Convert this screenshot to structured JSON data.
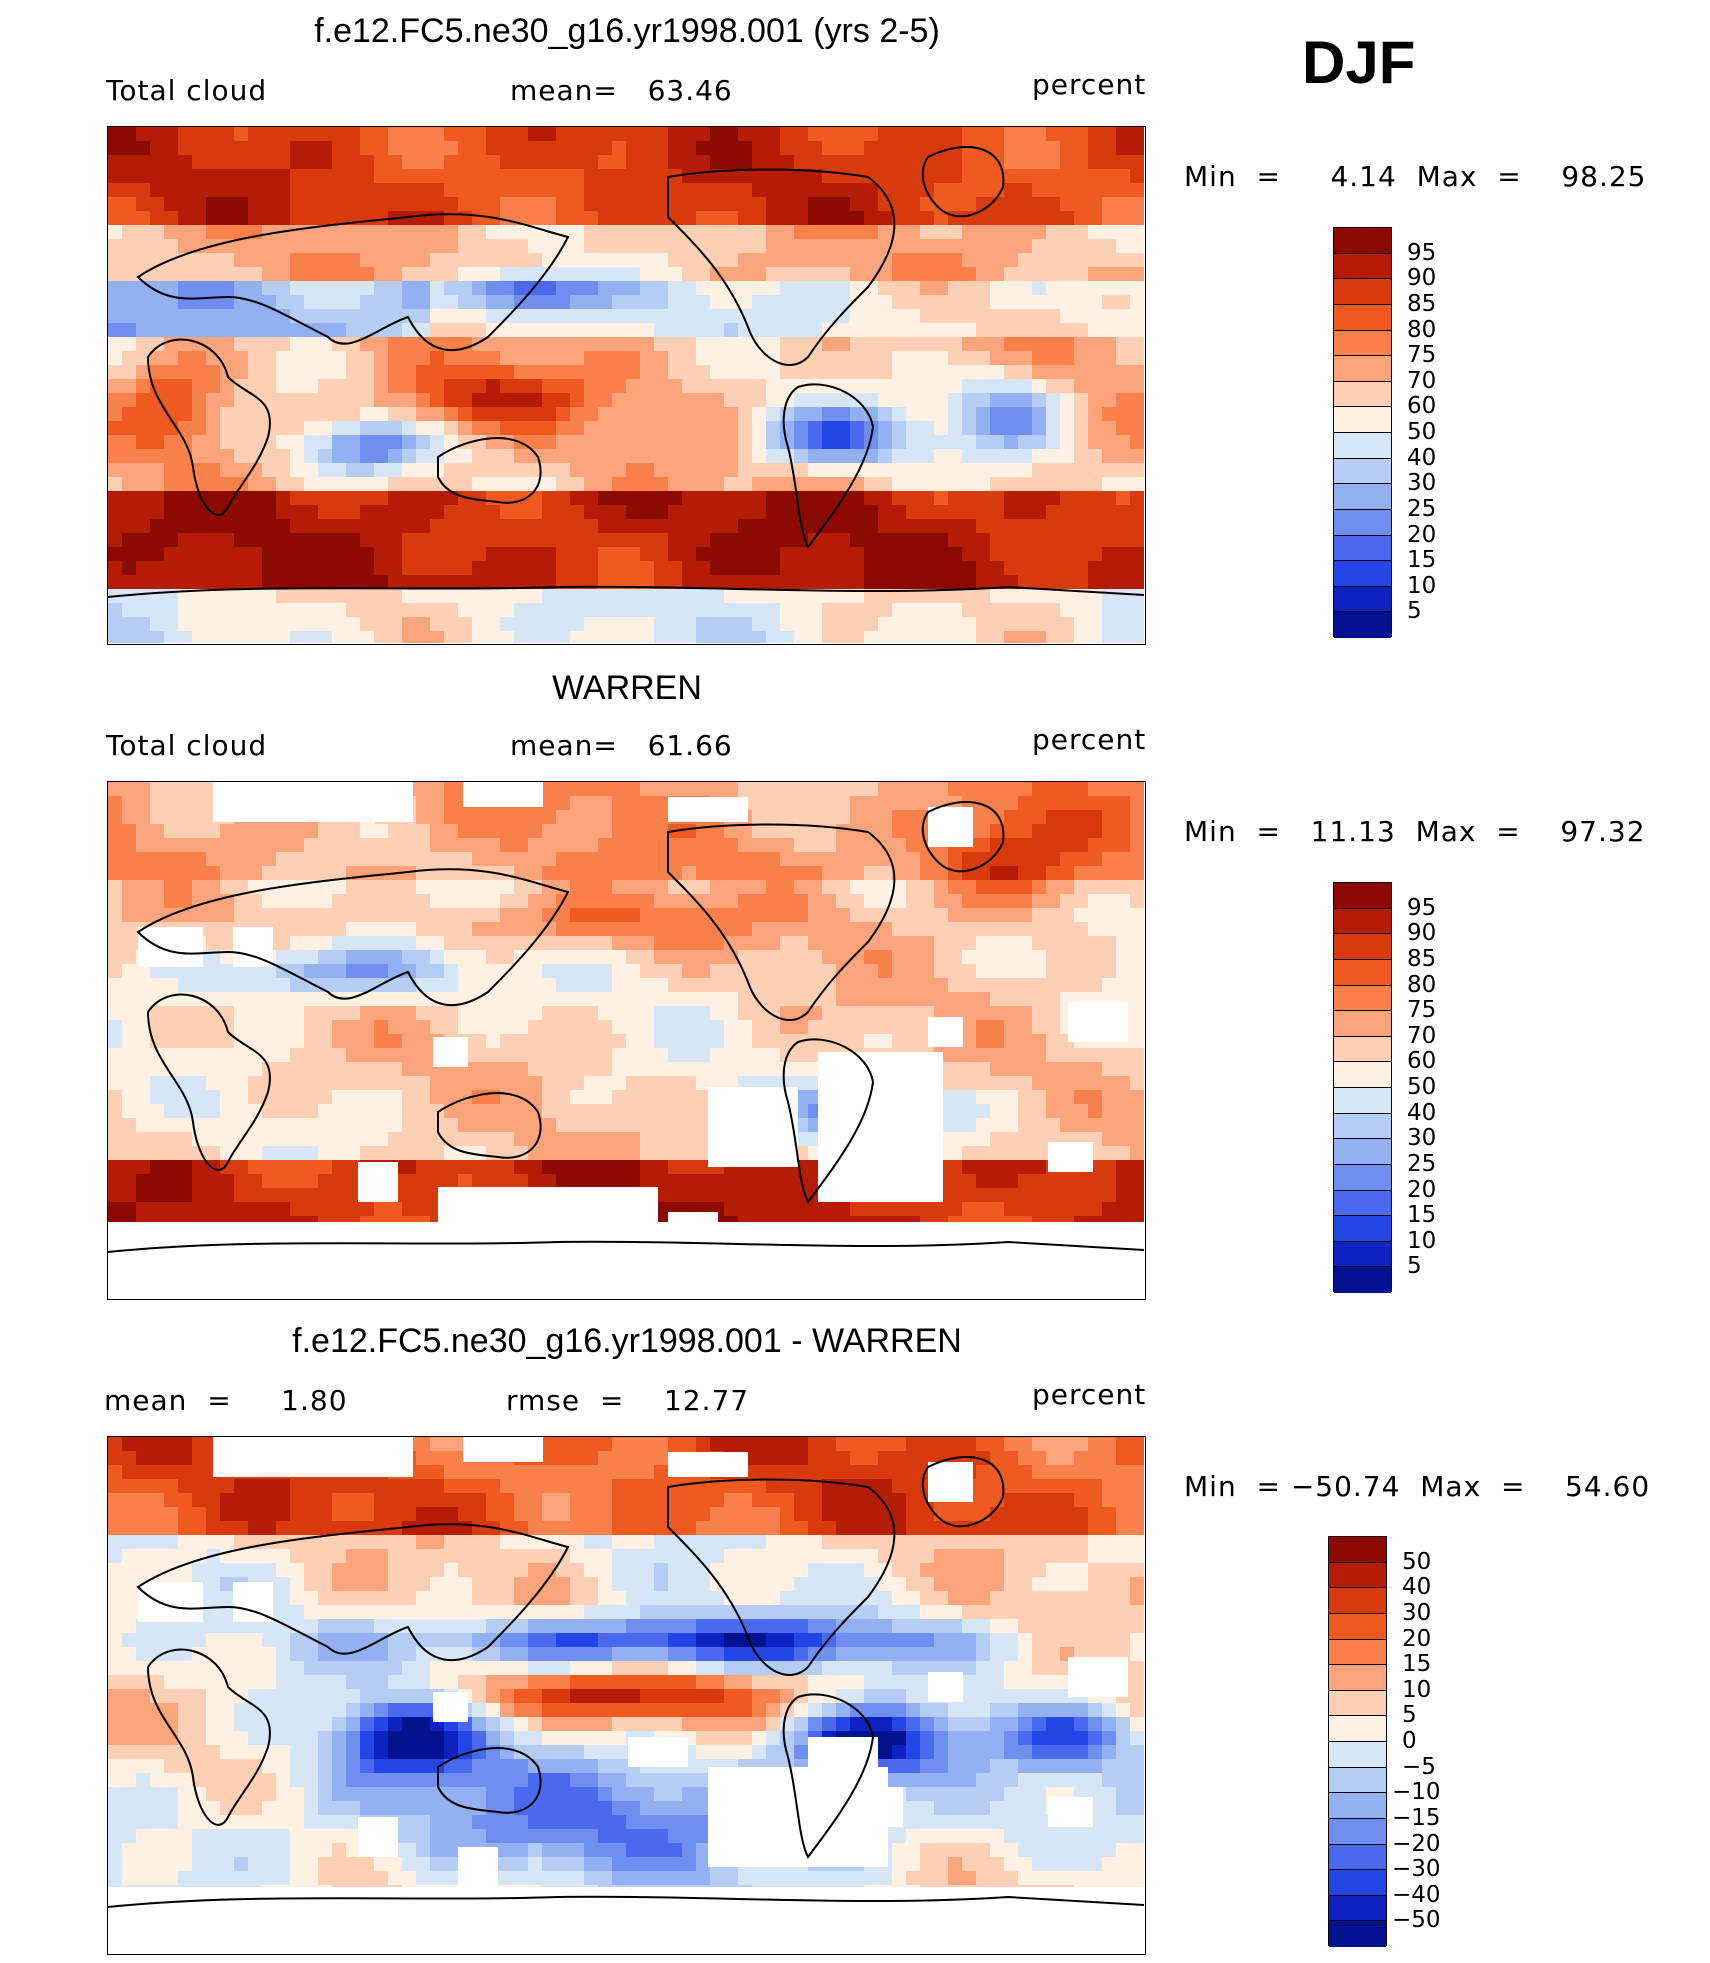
{
  "season": "DJF",
  "units": "percent",
  "panels": [
    {
      "id": "model",
      "title": "f.e12.FC5.ne30_g16.yr1998.001 (yrs 2-5)",
      "left_label": "Total cloud",
      "center_label": "mean=   63.46",
      "right_label": "percent",
      "minmax": "Min  =     4.14  Max  =    98.25",
      "colorbar_labels": [
        "95",
        "90",
        "85",
        "80",
        "75",
        "70",
        "60",
        "50",
        "40",
        "30",
        "25",
        "20",
        "15",
        "10",
        "5"
      ],
      "colorbar_colors": [
        "#8b0a02",
        "#b51c06",
        "#d93a0d",
        "#ef5a21",
        "#f8804a",
        "#fba47c",
        "#fdcfb4",
        "#fef0e3",
        "#d6e6f7",
        "#b5cdf5",
        "#92b0f2",
        "#6e8ff0",
        "#4a69ee",
        "#2446e6",
        "#0d22c0",
        "#03138f"
      ],
      "map_style": "model"
    },
    {
      "id": "obs",
      "title": "WARREN",
      "left_label": "Total cloud",
      "center_label": "mean=   61.66",
      "right_label": "percent",
      "minmax": "Min  =   11.13  Max  =    97.32",
      "colorbar_labels": [
        "95",
        "90",
        "85",
        "80",
        "75",
        "70",
        "60",
        "50",
        "40",
        "30",
        "25",
        "20",
        "15",
        "10",
        "5"
      ],
      "colorbar_colors": [
        "#8b0a02",
        "#b51c06",
        "#d93a0d",
        "#ef5a21",
        "#f8804a",
        "#fba47c",
        "#fdcfb4",
        "#fef0e3",
        "#d6e6f7",
        "#b5cdf5",
        "#92b0f2",
        "#6e8ff0",
        "#4a69ee",
        "#2446e6",
        "#0d22c0",
        "#03138f"
      ],
      "map_style": "obs"
    },
    {
      "id": "diff",
      "title": "f.e12.FC5.ne30_g16.yr1998.001 - WARREN",
      "left_label": "mean  =     1.80",
      "center_label": "rmse  =    12.77",
      "right_label": "percent",
      "minmax": "Min  = −50.74  Max  =    54.60",
      "colorbar_labels": [
        "50",
        "40",
        "30",
        "20",
        "15",
        "10",
        "5",
        "0",
        "−5",
        "−10",
        "−15",
        "−20",
        "−30",
        "−40",
        "−50"
      ],
      "colorbar_colors": [
        "#8b0a02",
        "#b51c06",
        "#d93a0d",
        "#ef5a21",
        "#f8804a",
        "#fba47c",
        "#fdcfb4",
        "#fef0e3",
        "#d6e6f7",
        "#b5cdf5",
        "#92b0f2",
        "#6e8ff0",
        "#4a69ee",
        "#2446e6",
        "#0d22c0",
        "#03138f"
      ],
      "map_style": "diff"
    }
  ]
}
